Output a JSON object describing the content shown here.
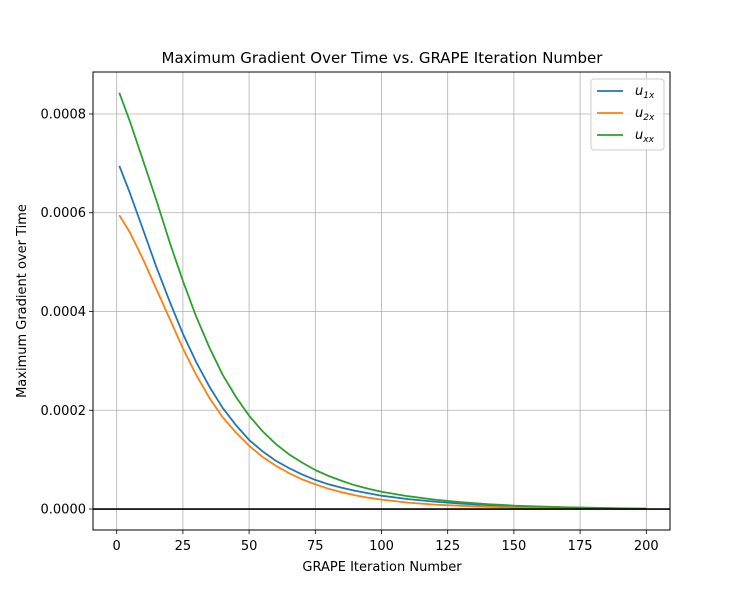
{
  "chart_data": {
    "type": "line",
    "title": "Maximum Gradient Over Time vs. GRAPE Iteration Number",
    "xlabel": "GRAPE Iteration Number",
    "ylabel": "Maximum Gradient over Time",
    "xlim": [
      -8.95,
      208.95
    ],
    "ylim": [
      -4.25e-05,
      0.000885
    ],
    "xticks": [
      0,
      25,
      50,
      75,
      100,
      125,
      150,
      175,
      200
    ],
    "xtick_labels": [
      "0",
      "25",
      "50",
      "75",
      "100",
      "125",
      "150",
      "175",
      "200"
    ],
    "yticks": [
      0.0,
      0.0002,
      0.0004,
      0.0006,
      0.0008
    ],
    "ytick_labels": [
      "0.0000",
      "0.0002",
      "0.0004",
      "0.0006",
      "0.0008"
    ],
    "grid": true,
    "legend_position": "top-right",
    "hline_y": 0,
    "x": [
      1,
      5,
      10,
      15,
      20,
      25,
      30,
      35,
      40,
      45,
      50,
      55,
      60,
      65,
      70,
      75,
      80,
      85,
      90,
      95,
      100,
      110,
      120,
      130,
      140,
      150,
      160,
      170,
      180,
      190,
      200
    ],
    "series": [
      {
        "name": "u",
        "sub": "1x",
        "color": "#1f77b4",
        "values": [
          0.000695,
          0.00064,
          0.000565,
          0.00049,
          0.00042,
          0.000355,
          0.000298,
          0.000248,
          0.000205,
          0.00017,
          0.00014,
          0.000117,
          9.8e-05,
          8.3e-05,
          7e-05,
          5.9e-05,
          5e-05,
          4.3e-05,
          3.7e-05,
          3.2e-05,
          2.7e-05,
          2e-05,
          1.5e-05,
          1.1e-05,
          8e-06,
          6e-06,
          4.5e-06,
          3e-06,
          2e-06,
          1e-06,
          5e-07
        ]
      },
      {
        "name": "u",
        "sub": "2x",
        "color": "#ff7f0e",
        "values": [
          0.000595,
          0.00056,
          0.000505,
          0.000445,
          0.000385,
          0.000325,
          0.000272,
          0.000225,
          0.000186,
          0.000155,
          0.000128,
          0.000106,
          8.8e-05,
          7.3e-05,
          6e-05,
          5e-05,
          4.1e-05,
          3.4e-05,
          2.8e-05,
          2.3e-05,
          1.9e-05,
          1.3e-05,
          9e-06,
          6.5e-06,
          4.5e-06,
          3e-06,
          2e-06,
          1.5e-06,
          1e-06,
          5e-07,
          2e-07
        ]
      },
      {
        "name": "u",
        "sub": "xx",
        "color": "#2ca02c",
        "values": [
          0.000843,
          0.000785,
          0.000705,
          0.000625,
          0.00054,
          0.000462,
          0.00039,
          0.000327,
          0.000272,
          0.000227,
          0.000189,
          0.000158,
          0.000132,
          0.000111,
          9.4e-05,
          7.9e-05,
          6.7e-05,
          5.7e-05,
          4.8e-05,
          4.1e-05,
          3.5e-05,
          2.6e-05,
          1.9e-05,
          1.4e-05,
          1e-05,
          7e-06,
          5e-06,
          3.5e-06,
          2.5e-06,
          1.5e-06,
          8e-07
        ]
      }
    ]
  }
}
